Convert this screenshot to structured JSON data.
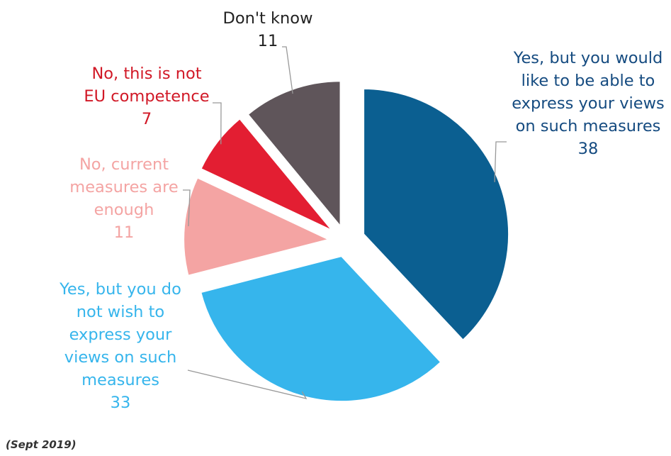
{
  "chart_data": {
    "type": "pie",
    "start_angle_deg": 0,
    "exploded": true,
    "slices": [
      {
        "label_lines": [
          "Yes, but you would",
          "like to be able to",
          "express your views",
          "on such measures"
        ],
        "value": 38,
        "color": "#0b5f91"
      },
      {
        "label_lines": [
          "Yes, but you do",
          "not wish to",
          "express your",
          "views on such",
          "measures"
        ],
        "value": 33,
        "color": "#36b5ec"
      },
      {
        "label_lines": [
          "No, current",
          "measures are",
          "enough"
        ],
        "value": 11,
        "color": "#f4a4a3"
      },
      {
        "label_lines": [
          "No, this is not",
          "EU competence"
        ],
        "value": 7,
        "color": "#e31e32"
      },
      {
        "label_lines": [
          "Don't know"
        ],
        "value": 11,
        "color": "#5f555a"
      }
    ],
    "label_colors": [
      "#154b80",
      "#36b5ec",
      "#f4a4a3",
      "#d11826",
      "#222222"
    ]
  },
  "footnote": "(Sept 2019)"
}
